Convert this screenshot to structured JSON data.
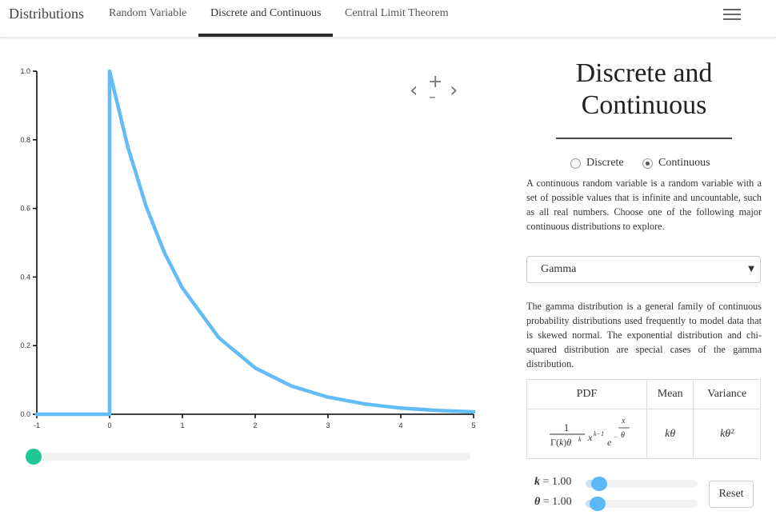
{
  "nav": {
    "brand": "Distributions",
    "items": [
      "Random Variable",
      "Discrete and Continuous",
      "Central Limit Theorem"
    ],
    "active_index": 1
  },
  "panel": {
    "title": "Discrete and Continuous",
    "radio": {
      "discrete": "Discrete",
      "continuous": "Continuous",
      "selected": "Continuous"
    },
    "intro": "A continuous random variable is a random variable with a set of possible values that is infinite and uncountable, such as all real numbers. Choose one of the following major continuous distributions to explore.",
    "select_value": "Gamma",
    "description": "The gamma distribution is a general family of continuous probability distributions used frequently to model data that is skewed normal. The exponential distribution and chi-squared distribution are special cases of the gamma distribution.",
    "table": {
      "headers": [
        "PDF",
        "Mean",
        "Variance"
      ],
      "mean": "kθ",
      "variance": "kθ²"
    },
    "params": {
      "k_label": "k",
      "k_value": "= 1.00",
      "theta_label": "θ",
      "theta_value": "= 1.00",
      "k_level": 0.08,
      "theta_level": 0.08
    },
    "reset_label": "Reset"
  },
  "x_slider_level": 0.0,
  "colors": {
    "curve": "#64bcf6",
    "accent_slider": "#1fc796",
    "param_thumb": "#5cb8fb"
  },
  "chart_data": {
    "type": "line",
    "title": "",
    "xlabel": "",
    "ylabel": "",
    "xlim": [
      -1,
      5
    ],
    "ylim": [
      0,
      1.0
    ],
    "xticks": [
      -1,
      0,
      1,
      2,
      3,
      4,
      5
    ],
    "yticks": [
      "0.0",
      "0.2",
      "0.4",
      "0.6",
      "0.8",
      "1.0"
    ],
    "series": [
      {
        "x": [
          -1,
          0,
          0,
          0.25,
          0.5,
          0.75,
          1,
          1.5,
          2,
          2.5,
          3,
          3.5,
          4,
          4.5,
          5
        ],
        "y": [
          0,
          0,
          1.0,
          0.779,
          0.607,
          0.472,
          0.368,
          0.223,
          0.135,
          0.082,
          0.05,
          0.03,
          0.018,
          0.011,
          0.007
        ]
      }
    ]
  }
}
